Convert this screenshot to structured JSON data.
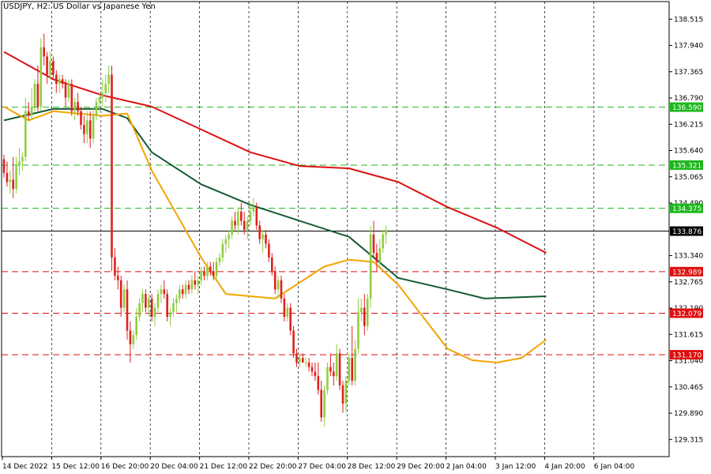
{
  "header": {
    "title": "USDJPY, H2:  US Dollar vs Japanese Yen"
  },
  "colors": {
    "background": "#ffffff",
    "frame": "#000000",
    "grid": "#000000",
    "bull_candle": "#8fce3f",
    "bear_candle": "#e0201e",
    "ma_slow": "#dd1010",
    "ma_mid": "#145a32",
    "ma_fast": "#f2a400",
    "resistance_line": "#1cb81c",
    "support_line": "#dd1010",
    "current_price_line": "#000000"
  },
  "chart_data": {
    "type": "candlestick",
    "symbol": "USDJPY",
    "timeframe": "H2",
    "y_axis": {
      "ticks": [
        "138.515",
        "137.940",
        "137.365",
        "136.790",
        "136.215",
        "135.640",
        "135.065",
        "134.490",
        "133.340",
        "132.765",
        "132.190",
        "131.615",
        "131.040",
        "130.465",
        "129.890",
        "129.315"
      ],
      "range": [
        128.94,
        138.9
      ]
    },
    "x_axis": {
      "ticks": [
        "14 Dec 2022",
        "15 Dec 12:00",
        "16 Dec 20:00",
        "20 Dec 04:00",
        "21 Dec 12:00",
        "22 Dec 20:00",
        "27 Dec 04:00",
        "28 Dec 12:00",
        "29 Dec 20:00",
        "2 Jan 04:00",
        "3 Jan 12:00",
        "4 Jan 20:00",
        "6 Jan 04:00"
      ],
      "bars_per_tick": 16
    },
    "horizontal_levels": [
      {
        "label": "136.590",
        "value": 136.59,
        "style": "resistance"
      },
      {
        "label": "135.321",
        "value": 135.321,
        "style": "resistance"
      },
      {
        "label": "134.375",
        "value": 134.375,
        "style": "resistance"
      },
      {
        "label": "133.876",
        "value": 133.876,
        "style": "current"
      },
      {
        "label": "132.989",
        "value": 132.989,
        "style": "support"
      },
      {
        "label": "132.079",
        "value": 132.079,
        "style": "support"
      },
      {
        "label": "131.170",
        "value": 131.17,
        "style": "support"
      }
    ],
    "moving_averages": [
      {
        "role": "slow",
        "points": [
          [
            0,
            137.8
          ],
          [
            16,
            137.2
          ],
          [
            32,
            136.85
          ],
          [
            48,
            136.6
          ],
          [
            64,
            136.1
          ],
          [
            80,
            135.6
          ],
          [
            96,
            135.3
          ],
          [
            112,
            135.25
          ],
          [
            128,
            134.95
          ],
          [
            144,
            134.4
          ],
          [
            160,
            133.95
          ],
          [
            176,
            133.4
          ]
        ]
      },
      {
        "role": "mid",
        "points": [
          [
            0,
            136.3
          ],
          [
            16,
            136.55
          ],
          [
            32,
            136.55
          ],
          [
            40,
            136.35
          ],
          [
            48,
            135.6
          ],
          [
            64,
            134.9
          ],
          [
            80,
            134.45
          ],
          [
            96,
            134.1
          ],
          [
            112,
            133.75
          ],
          [
            128,
            132.85
          ],
          [
            144,
            132.6
          ],
          [
            156,
            132.4
          ],
          [
            176,
            132.45
          ]
        ]
      },
      {
        "role": "fast",
        "points": [
          [
            0,
            136.6
          ],
          [
            8,
            136.3
          ],
          [
            16,
            136.5
          ],
          [
            32,
            136.4
          ],
          [
            40,
            136.45
          ],
          [
            48,
            135.2
          ],
          [
            64,
            133.3
          ],
          [
            72,
            132.5
          ],
          [
            88,
            132.4
          ],
          [
            104,
            133.1
          ],
          [
            112,
            133.25
          ],
          [
            120,
            133.2
          ],
          [
            128,
            132.7
          ],
          [
            136,
            132.0
          ],
          [
            144,
            131.3
          ],
          [
            152,
            131.05
          ],
          [
            160,
            131.0
          ],
          [
            168,
            131.1
          ],
          [
            176,
            131.5
          ]
        ]
      }
    ],
    "ohlc": [
      [
        135.45,
        135.55,
        135.05,
        135.15
      ],
      [
        135.15,
        135.4,
        134.85,
        134.95
      ],
      [
        134.95,
        135.2,
        134.7,
        135.0
      ],
      [
        135.0,
        135.5,
        134.6,
        134.8
      ],
      [
        134.8,
        135.5,
        134.7,
        135.3
      ],
      [
        135.3,
        135.7,
        135.1,
        135.4
      ],
      [
        135.4,
        135.6,
        135.2,
        135.5
      ],
      [
        135.5,
        136.8,
        135.4,
        136.5
      ],
      [
        136.5,
        136.7,
        136.3,
        136.4
      ],
      [
        136.4,
        137.0,
        136.3,
        136.6
      ],
      [
        136.6,
        137.2,
        136.5,
        137.1
      ],
      [
        137.1,
        137.5,
        136.5,
        136.6
      ],
      [
        136.6,
        138.1,
        136.5,
        137.9
      ],
      [
        137.9,
        138.2,
        137.5,
        137.7
      ],
      [
        137.7,
        137.8,
        137.1,
        137.3
      ],
      [
        137.3,
        137.8,
        137.2,
        137.6
      ],
      [
        137.6,
        137.7,
        137.2,
        137.3
      ],
      [
        137.3,
        137.4,
        136.9,
        137.1
      ],
      [
        137.1,
        137.3,
        136.9,
        137.2
      ],
      [
        137.2,
        137.3,
        137.0,
        137.1
      ],
      [
        137.1,
        137.2,
        136.6,
        136.8
      ],
      [
        136.8,
        137.2,
        136.7,
        137.1
      ],
      [
        137.1,
        137.2,
        136.4,
        136.5
      ],
      [
        136.5,
        136.8,
        136.3,
        136.7
      ],
      [
        136.7,
        136.9,
        136.4,
        136.5
      ],
      [
        136.5,
        136.6,
        136.1,
        136.2
      ],
      [
        136.2,
        136.4,
        135.8,
        136.0
      ],
      [
        136.0,
        136.5,
        135.8,
        136.3
      ],
      [
        136.3,
        136.5,
        135.7,
        135.9
      ],
      [
        135.9,
        136.6,
        135.8,
        136.4
      ],
      [
        136.4,
        136.8,
        136.3,
        136.7
      ],
      [
        136.7,
        136.9,
        136.5,
        136.8
      ],
      [
        136.8,
        137.2,
        136.6,
        136.9
      ],
      [
        136.9,
        137.3,
        136.7,
        137.1
      ],
      [
        137.1,
        137.5,
        136.9,
        137.3
      ],
      [
        137.3,
        137.5,
        133.0,
        133.3
      ],
      [
        133.3,
        133.5,
        132.8,
        132.9
      ],
      [
        132.9,
        133.1,
        132.6,
        132.8
      ],
      [
        132.8,
        132.9,
        132.0,
        132.2
      ],
      [
        132.2,
        132.7,
        132.1,
        132.6
      ],
      [
        132.6,
        132.8,
        131.5,
        131.7
      ],
      [
        131.7,
        131.9,
        131.0,
        131.4
      ],
      [
        131.4,
        131.7,
        131.3,
        131.6
      ],
      [
        131.6,
        132.2,
        131.5,
        132.0
      ],
      [
        132.0,
        132.4,
        131.9,
        132.3
      ],
      [
        132.3,
        132.6,
        132.1,
        132.5
      ],
      [
        132.5,
        132.6,
        132.1,
        132.2
      ],
      [
        132.2,
        132.5,
        132.0,
        132.4
      ],
      [
        132.4,
        132.5,
        131.9,
        132.0
      ],
      [
        132.0,
        132.3,
        131.8,
        132.2
      ],
      [
        132.2,
        132.6,
        132.1,
        132.5
      ],
      [
        132.5,
        132.7,
        132.3,
        132.6
      ],
      [
        132.6,
        132.8,
        132.4,
        132.5
      ],
      [
        132.5,
        132.6,
        131.9,
        132.0
      ],
      [
        132.0,
        132.2,
        131.8,
        132.1
      ],
      [
        132.1,
        132.4,
        132.0,
        132.3
      ],
      [
        132.3,
        132.5,
        132.1,
        132.4
      ],
      [
        132.4,
        132.7,
        132.3,
        132.6
      ],
      [
        132.6,
        132.7,
        132.4,
        132.5
      ],
      [
        132.5,
        132.8,
        132.4,
        132.7
      ],
      [
        132.7,
        132.8,
        132.5,
        132.6
      ],
      [
        132.6,
        132.9,
        132.5,
        132.8
      ],
      [
        132.8,
        133.0,
        132.6,
        132.7
      ],
      [
        132.7,
        132.9,
        132.5,
        132.8
      ],
      [
        132.8,
        133.1,
        132.7,
        133.0
      ],
      [
        133.0,
        133.1,
        132.8,
        132.9
      ],
      [
        132.9,
        133.2,
        132.8,
        133.1
      ],
      [
        133.1,
        133.2,
        132.9,
        133.0
      ],
      [
        133.0,
        133.2,
        132.8,
        132.9
      ],
      [
        132.9,
        133.3,
        132.8,
        133.2
      ],
      [
        133.2,
        133.4,
        133.1,
        133.3
      ],
      [
        133.3,
        133.7,
        133.2,
        133.6
      ],
      [
        133.6,
        133.8,
        133.4,
        133.7
      ],
      [
        133.7,
        133.9,
        133.5,
        133.8
      ],
      [
        133.8,
        134.2,
        133.7,
        134.1
      ],
      [
        134.1,
        134.3,
        133.9,
        134.0
      ],
      [
        134.0,
        134.4,
        133.8,
        134.3
      ],
      [
        134.3,
        134.5,
        134.0,
        134.1
      ],
      [
        134.1,
        134.3,
        133.8,
        133.9
      ],
      [
        133.9,
        134.2,
        133.7,
        134.1
      ],
      [
        134.1,
        134.5,
        134.0,
        134.3
      ],
      [
        134.3,
        134.6,
        134.2,
        134.4
      ],
      [
        134.4,
        134.5,
        133.9,
        134.0
      ],
      [
        134.0,
        134.1,
        133.6,
        133.7
      ],
      [
        133.7,
        133.9,
        133.4,
        133.8
      ],
      [
        133.8,
        133.9,
        133.5,
        133.6
      ],
      [
        133.6,
        133.7,
        133.2,
        133.3
      ],
      [
        133.3,
        133.4,
        132.9,
        133.0
      ],
      [
        133.0,
        133.1,
        132.5,
        132.6
      ],
      [
        132.6,
        132.9,
        132.4,
        132.8
      ],
      [
        132.8,
        132.9,
        132.3,
        132.4
      ],
      [
        132.4,
        132.5,
        131.9,
        132.0
      ],
      [
        132.0,
        132.3,
        131.9,
        132.2
      ],
      [
        132.2,
        132.3,
        131.6,
        131.7
      ],
      [
        131.7,
        131.8,
        131.1,
        131.2
      ],
      [
        131.2,
        131.3,
        130.9,
        131.0
      ],
      [
        131.0,
        131.2,
        130.9,
        131.1
      ],
      [
        131.1,
        131.2,
        131.0,
        131.0
      ],
      [
        131.0,
        131.1,
        130.9,
        131.0
      ],
      [
        131.0,
        131.1,
        130.8,
        130.9
      ],
      [
        130.9,
        131.0,
        130.7,
        130.8
      ],
      [
        130.8,
        131.0,
        130.6,
        130.7
      ],
      [
        130.7,
        131.0,
        130.3,
        130.4
      ],
      [
        130.4,
        130.6,
        129.7,
        129.8
      ],
      [
        129.8,
        130.5,
        129.6,
        130.4
      ],
      [
        130.4,
        131.0,
        130.3,
        130.9
      ],
      [
        130.9,
        131.2,
        130.7,
        130.8
      ],
      [
        130.8,
        131.0,
        130.5,
        130.7
      ],
      [
        130.7,
        131.4,
        130.6,
        131.2
      ],
      [
        131.2,
        131.3,
        130.4,
        130.5
      ],
      [
        130.5,
        130.6,
        129.9,
        130.1
      ],
      [
        130.1,
        130.7,
        129.9,
        130.6
      ],
      [
        130.6,
        131.2,
        130.5,
        131.1
      ],
      [
        131.1,
        131.8,
        130.5,
        130.6
      ],
      [
        130.6,
        131.5,
        130.5,
        131.3
      ],
      [
        131.3,
        132.4,
        131.2,
        132.1
      ],
      [
        132.1,
        132.4,
        131.9,
        132.2
      ],
      [
        132.2,
        132.5,
        131.6,
        131.8
      ],
      [
        131.8,
        132.5,
        131.7,
        132.4
      ],
      [
        132.4,
        134.0,
        132.2,
        133.8
      ],
      [
        133.8,
        134.1,
        133.3,
        133.4
      ],
      [
        133.4,
        133.6,
        133.0,
        133.2
      ],
      [
        133.2,
        133.7,
        133.1,
        133.5
      ],
      [
        133.5,
        133.9,
        133.4,
        133.8
      ],
      [
        133.8,
        134.0,
        133.6,
        133.9
      ]
    ]
  }
}
